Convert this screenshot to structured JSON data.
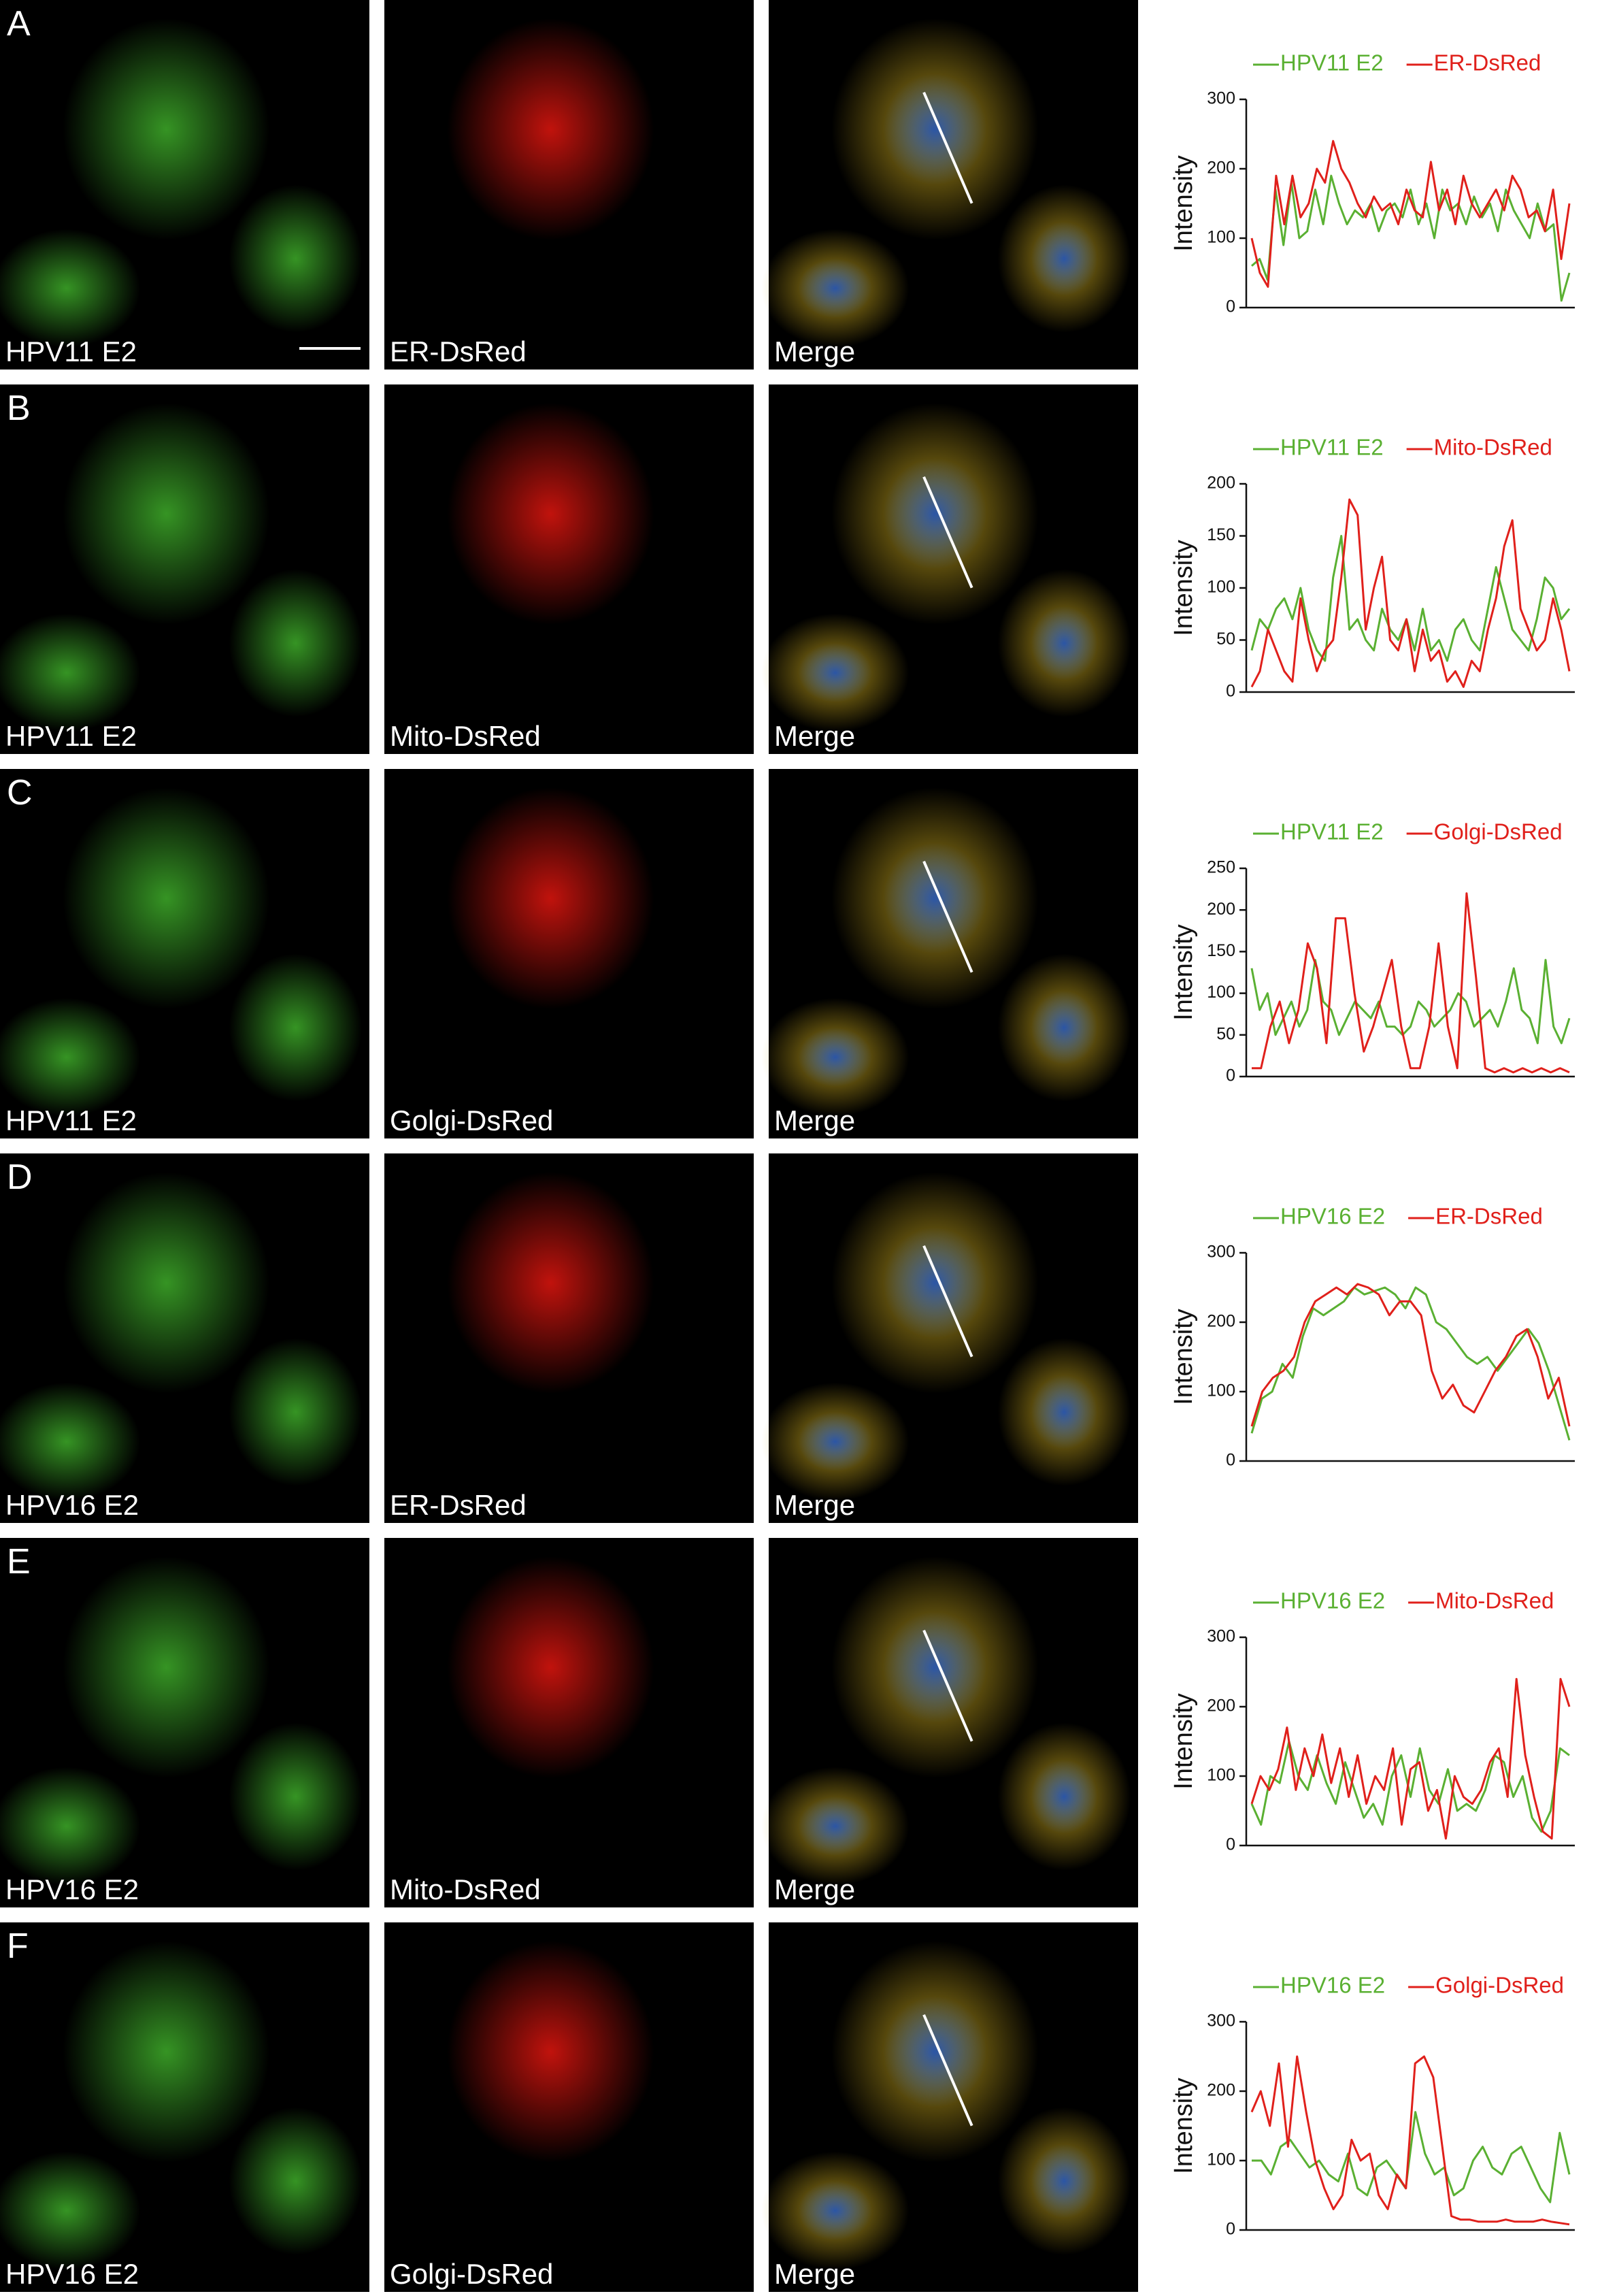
{
  "panels": [
    {
      "letter": "A",
      "images": [
        "HPV11 E2",
        "ER-DsRed",
        "Merge"
      ]
    },
    {
      "letter": "B",
      "images": [
        "HPV11 E2",
        "Mito-DsRed",
        "Merge"
      ]
    },
    {
      "letter": "C",
      "images": [
        "HPV11 E2",
        "Golgi-DsRed",
        "Merge"
      ]
    },
    {
      "letter": "D",
      "images": [
        "HPV16 E2",
        "ER-DsRed",
        "Merge"
      ]
    },
    {
      "letter": "E",
      "images": [
        "HPV16 E2",
        "Mito-DsRed",
        "Merge"
      ]
    },
    {
      "letter": "F",
      "images": [
        "HPV16 E2",
        "Golgi-DsRed",
        "Merge"
      ]
    }
  ],
  "chart_data": [
    {
      "type": "line",
      "ylabel": "Intensity",
      "ylim": [
        0,
        300
      ],
      "yticks": [
        0,
        100,
        200,
        300
      ],
      "series": [
        {
          "name": "HPV11 E2",
          "color": "#5ab032",
          "values": [
            60,
            70,
            40,
            170,
            90,
            180,
            100,
            110,
            170,
            120,
            190,
            150,
            120,
            140,
            130,
            150,
            110,
            140,
            150,
            130,
            170,
            120,
            150,
            100,
            170,
            140,
            150,
            120,
            160,
            130,
            150,
            110,
            170,
            140,
            120,
            100,
            150,
            110,
            120,
            10,
            50
          ]
        },
        {
          "name": "ER-DsRed",
          "color": "#e0201b",
          "values": [
            100,
            50,
            30,
            190,
            120,
            190,
            130,
            150,
            200,
            180,
            240,
            200,
            180,
            150,
            130,
            160,
            140,
            150,
            120,
            170,
            140,
            130,
            210,
            140,
            170,
            120,
            190,
            150,
            130,
            150,
            170,
            140,
            190,
            170,
            130,
            140,
            110,
            170,
            70,
            150
          ]
        }
      ]
    },
    {
      "type": "line",
      "ylabel": "Intensity",
      "ylim": [
        0,
        200
      ],
      "yticks": [
        0,
        50,
        100,
        150,
        200
      ],
      "series": [
        {
          "name": "HPV11 E2",
          "color": "#5ab032",
          "values": [
            40,
            70,
            60,
            80,
            90,
            70,
            100,
            60,
            40,
            30,
            110,
            150,
            60,
            70,
            50,
            40,
            80,
            60,
            50,
            70,
            40,
            80,
            40,
            50,
            30,
            60,
            70,
            50,
            40,
            80,
            120,
            90,
            60,
            50,
            40,
            70,
            110,
            100,
            70,
            80
          ]
        },
        {
          "name": "Mito-DsRed",
          "color": "#e0201b",
          "values": [
            5,
            20,
            60,
            40,
            20,
            10,
            90,
            50,
            20,
            40,
            50,
            110,
            185,
            170,
            60,
            100,
            130,
            50,
            40,
            70,
            20,
            60,
            30,
            40,
            10,
            20,
            5,
            30,
            20,
            60,
            90,
            140,
            165,
            80,
            60,
            40,
            50,
            90,
            60,
            20
          ]
        }
      ]
    },
    {
      "type": "line",
      "ylabel": "Intensity",
      "ylim": [
        0,
        250
      ],
      "yticks": [
        0,
        50,
        100,
        150,
        200,
        250
      ],
      "series": [
        {
          "name": "HPV11 E2",
          "color": "#5ab032",
          "values": [
            130,
            80,
            100,
            50,
            70,
            90,
            60,
            80,
            140,
            90,
            80,
            50,
            70,
            90,
            80,
            70,
            90,
            60,
            60,
            50,
            60,
            90,
            80,
            60,
            70,
            80,
            100,
            90,
            60,
            70,
            80,
            60,
            90,
            130,
            80,
            70,
            40,
            140,
            60,
            40,
            70
          ]
        },
        {
          "name": "Golgi-DsRed",
          "color": "#e0201b",
          "values": [
            10,
            10,
            60,
            90,
            40,
            80,
            160,
            130,
            40,
            190,
            190,
            100,
            30,
            60,
            100,
            140,
            60,
            10,
            10,
            60,
            160,
            60,
            10,
            220,
            120,
            10,
            5,
            10,
            5,
            10,
            5,
            10,
            5,
            10,
            5
          ]
        }
      ]
    },
    {
      "type": "line",
      "ylabel": "Intensity",
      "ylim": [
        0,
        300
      ],
      "yticks": [
        0,
        100,
        200,
        300
      ],
      "series": [
        {
          "name": "HPV16 E2",
          "color": "#5ab032",
          "values": [
            40,
            90,
            100,
            140,
            120,
            180,
            220,
            210,
            220,
            230,
            250,
            240,
            245,
            250,
            240,
            220,
            250,
            240,
            200,
            190,
            170,
            150,
            140,
            150,
            130,
            150,
            170,
            190,
            170,
            130,
            80,
            30
          ]
        },
        {
          "name": "ER-DsRed",
          "color": "#e0201b",
          "values": [
            50,
            100,
            120,
            130,
            150,
            200,
            230,
            240,
            250,
            240,
            255,
            250,
            240,
            210,
            230,
            230,
            210,
            130,
            90,
            110,
            80,
            70,
            100,
            130,
            150,
            180,
            190,
            150,
            90,
            120,
            50
          ]
        }
      ]
    },
    {
      "type": "line",
      "ylabel": "Intensity",
      "ylim": [
        0,
        300
      ],
      "yticks": [
        0,
        100,
        200,
        300
      ],
      "series": [
        {
          "name": "HPV16 E2",
          "color": "#5ab032",
          "values": [
            60,
            30,
            100,
            90,
            150,
            100,
            80,
            130,
            90,
            60,
            120,
            80,
            40,
            60,
            30,
            100,
            130,
            70,
            140,
            80,
            60,
            110,
            50,
            60,
            50,
            80,
            130,
            120,
            70,
            100,
            40,
            20,
            50,
            140,
            130
          ]
        },
        {
          "name": "Mito-DsRed",
          "color": "#e0201b",
          "values": [
            60,
            100,
            80,
            110,
            170,
            80,
            140,
            100,
            160,
            90,
            140,
            70,
            130,
            60,
            100,
            80,
            140,
            30,
            110,
            120,
            50,
            80,
            10,
            100,
            70,
            60,
            80,
            120,
            140,
            70,
            240,
            130,
            70,
            20,
            10,
            240,
            200
          ]
        }
      ]
    },
    {
      "type": "line",
      "ylabel": "Intensity",
      "ylim": [
        0,
        300
      ],
      "yticks": [
        0,
        100,
        200,
        300
      ],
      "series": [
        {
          "name": "HPV16 E2",
          "color": "#5ab032",
          "values": [
            100,
            100,
            80,
            120,
            130,
            110,
            90,
            100,
            80,
            70,
            110,
            60,
            50,
            90,
            100,
            80,
            60,
            170,
            110,
            80,
            90,
            50,
            60,
            100,
            120,
            90,
            80,
            110,
            120,
            90,
            60,
            40,
            140,
            80
          ]
        },
        {
          "name": "Golgi-DsRed",
          "color": "#e0201b",
          "values": [
            170,
            200,
            150,
            240,
            120,
            250,
            170,
            100,
            60,
            30,
            50,
            130,
            100,
            110,
            50,
            30,
            80,
            60,
            240,
            250,
            220,
            120,
            20,
            15,
            15,
            12,
            12,
            12,
            15,
            12,
            12,
            12,
            15,
            12,
            10,
            8
          ]
        }
      ]
    }
  ]
}
